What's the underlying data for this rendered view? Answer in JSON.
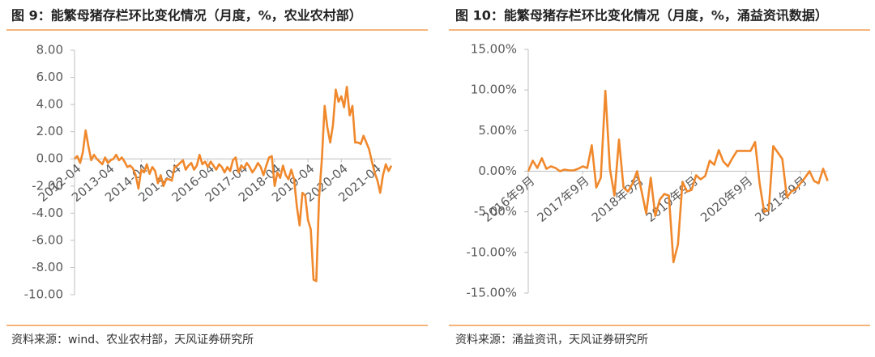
{
  "chart_data": [
    {
      "type": "line",
      "title": "图 9：能繁母猪存栏环比变化情况（月度，%，农业农村部）",
      "source": "资料来源：wind、农业农村部，天风证券研究所",
      "color": "#f0882c",
      "ylim": [
        -10,
        8
      ],
      "yticks": [
        {
          "value": 8,
          "label": "8.00"
        },
        {
          "value": 6,
          "label": "6.00"
        },
        {
          "value": 4,
          "label": "4.00"
        },
        {
          "value": 2,
          "label": "2.00"
        },
        {
          "value": 0,
          "label": "0.00"
        },
        {
          "value": -2,
          "label": "-2.00"
        },
        {
          "value": -4,
          "label": "-4.00"
        },
        {
          "value": -6,
          "label": "-6.00"
        },
        {
          "value": -8,
          "label": "-8.00"
        },
        {
          "value": -10,
          "label": "-10.00"
        }
      ],
      "categories": [
        "2012-04",
        null,
        null,
        null,
        null,
        null,
        null,
        null,
        null,
        null,
        null,
        null,
        "2013-04",
        null,
        null,
        null,
        null,
        null,
        null,
        null,
        null,
        null,
        null,
        null,
        "2014-04",
        null,
        null,
        null,
        null,
        null,
        null,
        null,
        null,
        null,
        null,
        null,
        "2015-04",
        null,
        null,
        null,
        null,
        null,
        null,
        null,
        null,
        null,
        null,
        null,
        "2016-04",
        null,
        null,
        null,
        null,
        null,
        null,
        null,
        null,
        null,
        null,
        null,
        "2017-04",
        null,
        null,
        null,
        null,
        null,
        null,
        null,
        null,
        null,
        null,
        null,
        "2018-04",
        null,
        null,
        null,
        null,
        null,
        null,
        null,
        null,
        null,
        null,
        null,
        "2019-04",
        null,
        null,
        null,
        null,
        null,
        null,
        null,
        null,
        null,
        null,
        null,
        "2020-04",
        null,
        null,
        null,
        null,
        null,
        null,
        null,
        null,
        null,
        null,
        null,
        "2021-04",
        null,
        null,
        null,
        null,
        null,
        null
      ],
      "values": [
        0,
        0.2,
        -0.3,
        0.5,
        2.1,
        0.9,
        -0.1,
        0.3,
        0,
        -0.2,
        -0.4,
        0.1,
        -0.3,
        -0.1,
        0,
        0.3,
        -0.1,
        0.1,
        -0.2,
        -0.6,
        -0.5,
        -0.7,
        -1.2,
        -2.2,
        -0.8,
        -1.0,
        -0.4,
        -1.1,
        -0.6,
        -0.9,
        -1.8,
        -1.2,
        -2.0,
        -1.5,
        -1.5,
        -1.6,
        -0.6,
        -0.5,
        -0.3,
        -0.1,
        -0.8,
        -0.5,
        -0.3,
        -0.8,
        -0.5,
        0.3,
        -0.4,
        -0.2,
        -0.6,
        -0.2,
        -0.5,
        -0.8,
        -0.4,
        -0.6,
        -1.0,
        -0.6,
        -0.9,
        -0.1,
        0.1,
        -1.0,
        -0.5,
        -0.7,
        -0.3,
        -0.6,
        -1.0,
        -0.7,
        -0.3,
        -0.6,
        -1.2,
        -0.5,
        0.1,
        0.2,
        -2.0,
        -1.0,
        -1.4,
        -0.5,
        -1.2,
        -1.5,
        -0.8,
        -1.5,
        -3.5,
        -4.9,
        -2.5,
        -2.7,
        -4.5,
        -5.2,
        -8.9,
        -9.0,
        -2.9,
        0,
        3.9,
        2.3,
        1.2,
        2.5,
        5.1,
        4.2,
        4.6,
        3.8,
        5.3,
        3.2,
        3.9,
        1.2,
        1.2,
        1.1,
        1.7,
        1.2,
        0.7,
        -0.2,
        -1.0,
        -1.6,
        -2.5,
        -1.2,
        -0.4,
        -0.9,
        -0.5
      ]
    },
    {
      "type": "line",
      "title": "图 10：能繁母猪存栏环比变化情况（月度，%，涌益资讯数据）",
      "source": "资料来源：涌益资讯，天风证券研究所",
      "color": "#f0882c",
      "ylim": [
        -15,
        15
      ],
      "yticks": [
        {
          "value": 15,
          "label": "15.00%"
        },
        {
          "value": 10,
          "label": "10.00%"
        },
        {
          "value": 5,
          "label": "5.00%"
        },
        {
          "value": 0,
          "label": "0.00%"
        },
        {
          "value": -5,
          "label": "-5.00%"
        },
        {
          "value": -10,
          "label": "-10.00%"
        },
        {
          "value": -15,
          "label": "-15.00%"
        }
      ],
      "categories": [
        "2016年9月",
        null,
        null,
        null,
        null,
        null,
        null,
        null,
        null,
        null,
        null,
        null,
        "2017年9月",
        null,
        null,
        null,
        null,
        null,
        null,
        null,
        null,
        null,
        null,
        null,
        "2018年9月",
        null,
        null,
        null,
        null,
        null,
        null,
        null,
        null,
        null,
        null,
        null,
        "2019年9月",
        null,
        null,
        null,
        null,
        null,
        null,
        null,
        null,
        null,
        null,
        null,
        "2020年9月",
        null,
        null,
        null,
        null,
        null,
        null,
        null,
        null,
        null,
        null,
        null,
        "2021年9月",
        null,
        null,
        null,
        null,
        null,
        null
      ],
      "values": [
        0,
        1.3,
        0.4,
        1.6,
        0.3,
        0.6,
        0.4,
        0,
        0.2,
        0.1,
        0.1,
        0.3,
        0.6,
        0.4,
        3.2,
        -2.0,
        -0.8,
        9.9,
        0.3,
        -3.0,
        3.9,
        -2.0,
        -2.5,
        -1.5,
        0,
        -2.5,
        -5.2,
        -0.8,
        -5.5,
        -3.5,
        -2.8,
        -3.0,
        -11.2,
        -9.0,
        -1.3,
        -2.5,
        -2.3,
        -0.5,
        -1.0,
        -0.6,
        1.3,
        0.8,
        2.6,
        1.2,
        0.6,
        1.6,
        2.5,
        2.5,
        2.5,
        2.5,
        3.6,
        -1.5,
        -5.0,
        -4.8,
        3.1,
        2.3,
        1.5,
        -3.2,
        -2.5,
        -2.2,
        -1.5,
        -0.8,
        0,
        -1.2,
        -1.5,
        0.3,
        -1.2
      ]
    }
  ]
}
